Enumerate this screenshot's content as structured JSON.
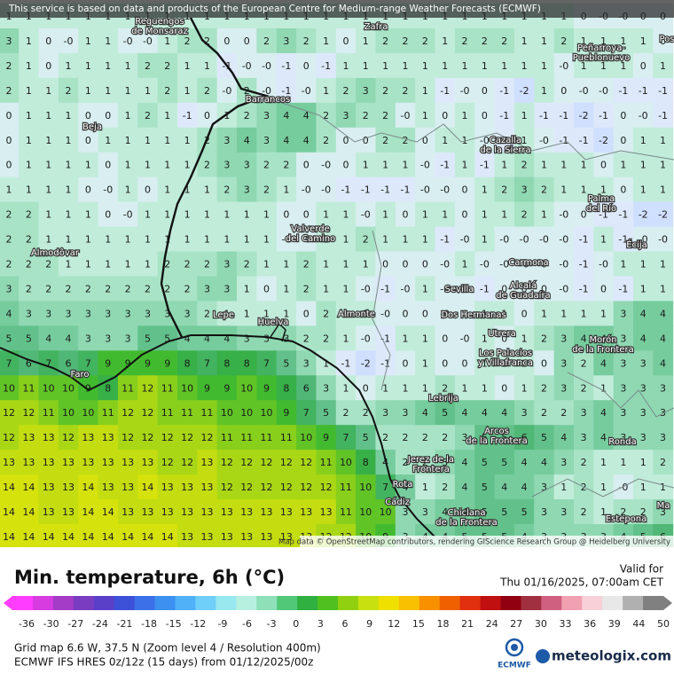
{
  "banner": "This service is based on data and products of the European Centre for Medium-range Weather Forecasts (ECMWF)",
  "attribution": "Map data © OpenStreetMap contributors, rendering GIScience Research Group @ Heidelberg University",
  "title": "Min. temperature, 6h (°C)",
  "valid_label": "Valid for",
  "valid_time": "Thu 01/16/2025, 07:00am CET",
  "grid_info": "Grid map 6.6 W, 37.5 N (Zoom level 4 / Resolution 400m)",
  "model_info": "ECMWF IFS HRES 0z/12z (15 days) from 01/12/2025/00z",
  "ecmwf": "ECMWF",
  "brand": "meteologix.com",
  "scale_labels": [
    "-36",
    "-30",
    "-27",
    "-24",
    "-21",
    "-18",
    "-15",
    "-12",
    "-9",
    "-6",
    "-3",
    "0",
    "3",
    "6",
    "9",
    "12",
    "15",
    "18",
    "21",
    "24",
    "27",
    "30",
    "33",
    "36",
    "39",
    "44",
    "50"
  ],
  "places": [
    [
      "Reguengos",
      "de Monsaraz"
    ],
    [
      "Zafra"
    ],
    [
      "Peñarroya-",
      "Pueblonuevo"
    ],
    [
      "Pos"
    ],
    [
      "Barrancos"
    ],
    [
      "Beja"
    ],
    [
      "Cazalla",
      "de la Sierra"
    ],
    [
      "Palma",
      "del Río"
    ],
    [
      "Écija"
    ],
    [
      "Valverde",
      "del Camino"
    ],
    [
      "Almodôvar"
    ],
    [
      "Carmona"
    ],
    [
      "Sevilla"
    ],
    [
      "Alcalá",
      "de Guadaíra"
    ],
    [
      "Lepe"
    ],
    [
      "Huelva"
    ],
    [
      "Almonte"
    ],
    [
      "Dos Hermanas"
    ],
    [
      "Utrera"
    ],
    [
      "Morón",
      "de la Frontera"
    ],
    [
      "Los Palacios",
      "y Villafranca"
    ],
    [
      "Faro"
    ],
    [
      "Lebrija"
    ],
    [
      "Arcos",
      "de la Frontera"
    ],
    [
      "Ronda"
    ],
    [
      "Jerez de la",
      "Frontera"
    ],
    [
      "Rota"
    ],
    [
      "Cádiz"
    ],
    [
      "Chiclana",
      "de la Frontera"
    ],
    [
      "Estepona"
    ],
    [
      "Ma"
    ]
  ],
  "grid": [
    [
      "1",
      "1",
      "1",
      "1",
      "1",
      "1",
      "1",
      "1",
      "1",
      "1",
      "1",
      "1",
      "1",
      "1",
      "1",
      "1",
      "1",
      "1",
      "1",
      "1",
      "1",
      "1",
      "1",
      "1",
      "1",
      "1",
      "1",
      "1",
      "1",
      "0",
      "-0",
      "-0",
      "0",
      "0"
    ],
    [
      "3",
      "1",
      "0",
      "-0",
      "1",
      "1",
      "-0",
      "-0",
      "1",
      "2",
      "2",
      "0",
      "0",
      "2",
      "3",
      "2",
      "1",
      "0",
      "1",
      "2",
      "2",
      "2",
      "1",
      "2",
      "2",
      "2",
      "1",
      "1",
      "2",
      "1",
      "1",
      "1",
      "1",
      "0"
    ],
    [
      "2",
      "1",
      "0",
      "1",
      "1",
      "1",
      "1",
      "2",
      "2",
      "1",
      "1",
      "-1",
      "-0",
      "-0",
      "-1",
      "0",
      "-1",
      "1",
      "1",
      "1",
      "1",
      "1",
      "1",
      "1",
      "1",
      "1",
      "1",
      "1",
      "-0",
      "1",
      "1",
      "1",
      "0",
      "1"
    ],
    [
      "2",
      "1",
      "1",
      "2",
      "1",
      "1",
      "1",
      "1",
      "2",
      "1",
      "2",
      "-0",
      "2",
      "-0",
      "-1",
      "-0",
      "1",
      "2",
      "3",
      "2",
      "2",
      "1",
      "-1",
      "-0",
      "0",
      "-1",
      "-2",
      "1",
      "0",
      "-0",
      "-0",
      "-1",
      "-1",
      "-1"
    ],
    [
      "0",
      "1",
      "1",
      "1",
      "0",
      "0",
      "1",
      "2",
      "1",
      "-1",
      "0",
      "1",
      "2",
      "3",
      "4",
      "4",
      "2",
      "3",
      "2",
      "2",
      "-0",
      "1",
      "0",
      "1",
      "0",
      "-1",
      "1",
      "-1",
      "-1",
      "-2",
      "-1",
      "0",
      "-0",
      "-1"
    ],
    [
      "0",
      "1",
      "1",
      "1",
      "0",
      "1",
      "1",
      "1",
      "1",
      "1",
      "2",
      "3",
      "4",
      "3",
      "4",
      "4",
      "2",
      "0",
      "0",
      "2",
      "2",
      "0",
      "1",
      "1",
      "-0",
      "-1",
      "1",
      "-0",
      "-1",
      "-1",
      "-2",
      "0",
      "1",
      "1"
    ],
    [
      "0",
      "1",
      "1",
      "1",
      "1",
      "0",
      "1",
      "1",
      "1",
      "1",
      "2",
      "3",
      "3",
      "2",
      "2",
      "0",
      "-0",
      "0",
      "1",
      "1",
      "1",
      "-0",
      "-1",
      "1",
      "-1",
      "1",
      "2",
      "1",
      "1",
      "1",
      "0",
      "1",
      "1",
      "1"
    ],
    [
      "1",
      "1",
      "1",
      "1",
      "0",
      "-0",
      "1",
      "0",
      "1",
      "1",
      "1",
      "2",
      "3",
      "2",
      "1",
      "-0",
      "-0",
      "-1",
      "-1",
      "-1",
      "-1",
      "-0",
      "-0",
      "0",
      "1",
      "2",
      "3",
      "2",
      "1",
      "1",
      "1",
      "0",
      "1",
      "1"
    ],
    [
      "2",
      "2",
      "1",
      "1",
      "1",
      "0",
      "-0",
      "1",
      "1",
      "1",
      "1",
      "1",
      "1",
      "1",
      "0",
      "0",
      "1",
      "1",
      "-0",
      "1",
      "0",
      "1",
      "1",
      "0",
      "1",
      "1",
      "2",
      "1",
      "-0",
      "0",
      "-1",
      "-1",
      "-2",
      "-2"
    ],
    [
      "2",
      "2",
      "1",
      "1",
      "1",
      "1",
      "1",
      "1",
      "1",
      "1",
      "1",
      "1",
      "1",
      "1",
      "-0",
      "-0",
      "1",
      "1",
      "2",
      "1",
      "1",
      "1",
      "-1",
      "-0",
      "1",
      "-0",
      "-0",
      "-0",
      "-0",
      "-1",
      "1",
      "-1",
      "-0",
      "-0"
    ],
    [
      "2",
      "2",
      "2",
      "1",
      "1",
      "1",
      "1",
      "1",
      "2",
      "2",
      "2",
      "3",
      "2",
      "1",
      "1",
      "2",
      "1",
      "1",
      "1",
      "0",
      "0",
      "0",
      "-0",
      "1",
      "-0",
      "-0",
      "-0",
      "0",
      "-0",
      "-1",
      "-0",
      "1",
      "1",
      "1"
    ],
    [
      "3",
      "2",
      "2",
      "2",
      "2",
      "2",
      "2",
      "2",
      "2",
      "2",
      "3",
      "3",
      "1",
      "0",
      "1",
      "2",
      "1",
      "1",
      "-0",
      "-1",
      "-0",
      "1",
      "-0",
      "-0",
      "-1",
      "0",
      "0",
      "0",
      "-0",
      "-1",
      "0",
      "-1",
      "1",
      "1"
    ],
    [
      "4",
      "3",
      "3",
      "3",
      "3",
      "3",
      "3",
      "3",
      "3",
      "3",
      "2",
      "1",
      "1",
      "1",
      "1",
      "0",
      "2",
      "1",
      "1",
      "-0",
      "0",
      "0",
      "-0",
      "0",
      "1",
      "1",
      "0",
      "1",
      "1",
      "1",
      "1",
      "3",
      "4",
      "4"
    ],
    [
      "5",
      "5",
      "4",
      "4",
      "3",
      "3",
      "3",
      "5",
      "5",
      "4",
      "4",
      "4",
      "3",
      "3",
      "3",
      "2",
      "2",
      "1",
      "-0",
      "-1",
      "1",
      "1",
      "0",
      "-0",
      "1",
      "0",
      "1",
      "2",
      "3",
      "4",
      "4",
      "3",
      "4",
      "4"
    ],
    [
      "7",
      "6",
      "7",
      "6",
      "7",
      "9",
      "9",
      "9",
      "9",
      "8",
      "7",
      "8",
      "8",
      "7",
      "5",
      "3",
      "1",
      "-1",
      "-2",
      "-1",
      "0",
      "1",
      "0",
      "0",
      "1",
      "1",
      "1",
      "0",
      "3",
      "2",
      "4",
      "3",
      "3",
      "4"
    ],
    [
      "10",
      "11",
      "10",
      "10",
      "9",
      "8",
      "11",
      "12",
      "11",
      "10",
      "9",
      "9",
      "10",
      "9",
      "8",
      "6",
      "3",
      "1",
      "0",
      "1",
      "1",
      "1",
      "2",
      "1",
      "1",
      "0",
      "1",
      "2",
      "3",
      "2",
      "1",
      "3",
      "3",
      "3"
    ],
    [
      "12",
      "12",
      "11",
      "10",
      "10",
      "11",
      "12",
      "12",
      "11",
      "11",
      "11",
      "10",
      "10",
      "10",
      "9",
      "7",
      "5",
      "2",
      "2",
      "3",
      "3",
      "4",
      "5",
      "4",
      "4",
      "4",
      "3",
      "2",
      "2",
      "3",
      "4",
      "3",
      "3",
      "3"
    ],
    [
      "12",
      "13",
      "13",
      "12",
      "13",
      "13",
      "12",
      "12",
      "12",
      "12",
      "12",
      "11",
      "11",
      "11",
      "11",
      "10",
      "9",
      "7",
      "5",
      "2",
      "2",
      "2",
      "2",
      "3",
      "5",
      "5",
      "6",
      "5",
      "4",
      "3",
      "4",
      "3",
      "3",
      "3"
    ],
    [
      "13",
      "13",
      "13",
      "13",
      "13",
      "13",
      "13",
      "13",
      "12",
      "12",
      "13",
      "12",
      "12",
      "12",
      "12",
      "12",
      "11",
      "10",
      "8",
      "4",
      "2",
      "2",
      "3",
      "4",
      "5",
      "5",
      "4",
      "4",
      "3",
      "2",
      "1",
      "1",
      "1",
      "2"
    ],
    [
      "14",
      "14",
      "13",
      "13",
      "14",
      "13",
      "13",
      "14",
      "13",
      "13",
      "13",
      "12",
      "12",
      "12",
      "12",
      "12",
      "12",
      "11",
      "10",
      "7",
      "4",
      "1",
      "2",
      "4",
      "5",
      "4",
      "4",
      "3",
      "1",
      "2",
      "1",
      "-0",
      "1",
      "1"
    ],
    [
      "14",
      "14",
      "13",
      "13",
      "14",
      "14",
      "13",
      "13",
      "13",
      "13",
      "13",
      "13",
      "13",
      "13",
      "13",
      "13",
      "13",
      "11",
      "10",
      "10",
      "3",
      "3",
      "4",
      "4",
      "5",
      "5",
      "5",
      "3",
      "3",
      "2",
      "1",
      "2",
      "2",
      "3"
    ],
    [
      "14",
      "14",
      "14",
      "14",
      "14",
      "14",
      "14",
      "14",
      "14",
      "13",
      "13",
      "13",
      "13",
      "13",
      "13",
      "13",
      "12",
      "12",
      "10",
      "9",
      "3",
      "4",
      "4",
      "5",
      "5",
      "5",
      "4",
      "3",
      "3",
      "3",
      "3",
      "4",
      "5",
      "6"
    ]
  ]
}
